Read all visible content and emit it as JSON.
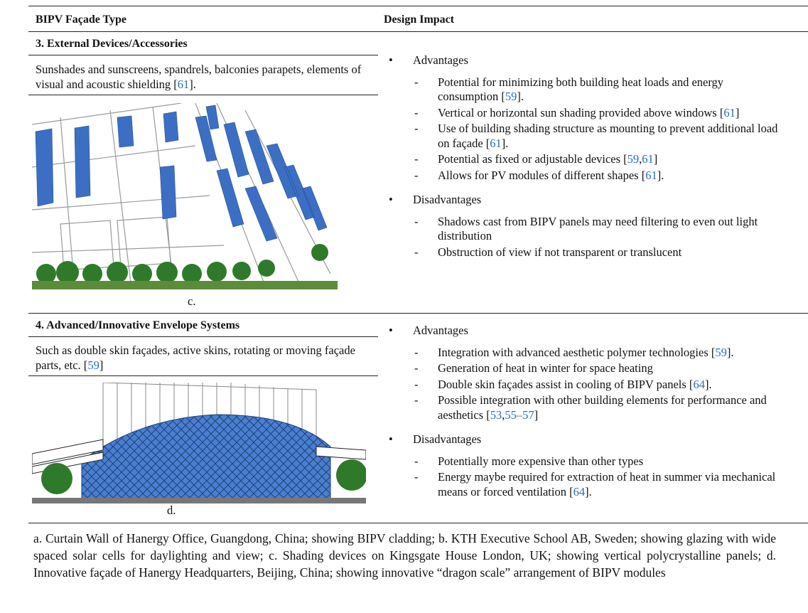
{
  "header": {
    "col1": "BIPV Façade Type",
    "col2": "Design Impact"
  },
  "sections": [
    {
      "title": "3. External Devices/Accessories",
      "description": [
        "Sunshades and sunscreens, spandrels, balconies parapets, elements of visual and acoustic shielding [",
        "61",
        "]."
      ],
      "figure_label": "c.",
      "impact": [
        {
          "heading": "Advantages",
          "items": [
            [
              "Potential for minimizing both building heat loads and energy consumption [",
              "59",
              "]."
            ],
            [
              "Vertical or horizontal sun shading provided above windows [",
              "61",
              "]"
            ],
            [
              "Use of building shading structure as mounting to prevent additional load on façade [",
              "61",
              "]."
            ],
            [
              "Potential as fixed or adjustable devices [",
              "59",
              ",",
              "61",
              "]"
            ],
            [
              "Allows for PV modules of different shapes [",
              "61",
              "]."
            ]
          ]
        },
        {
          "heading": "Disadvantages",
          "items": [
            [
              "Shadows cast from BIPV panels may need filtering to even out light distribution"
            ],
            [
              "Obstruction of view if not transparent or translucent"
            ]
          ]
        }
      ]
    },
    {
      "title": "4. Advanced/Innovative Envelope Systems",
      "description": [
        "Such as double skin façades, active skins, rotating or moving façade parts, etc. [",
        "59",
        "]"
      ],
      "figure_label": "d.",
      "impact": [
        {
          "heading": "Advantages",
          "items": [
            [
              "Integration with advanced aesthetic polymer technologies [",
              "59",
              "]."
            ],
            [
              "Generation of heat in winter for space heating"
            ],
            [
              "Double skin façades assist in cooling of BIPV panels [",
              "64",
              "]."
            ],
            [
              "Possible integration with other building elements for performance and aesthetics [",
              "53",
              ",",
              "55–57",
              "]"
            ]
          ]
        },
        {
          "heading": "Disadvantages",
          "items": [
            [
              "Potentially more expensive than other types"
            ],
            [
              "Energy maybe required for extraction of heat in summer via mechanical means or forced ventilation [",
              "64",
              "]."
            ]
          ]
        }
      ]
    }
  ],
  "caption": "a. Curtain Wall of Hanergy Office, Guangdong, China; showing BIPV cladding; b. KTH Executive School AB, Sweden; showing glazing with wide spaced solar cells for daylighting and view; c. Shading devices on Kingsgate House London, UK; showing vertical polycrystalline panels; d. Innovative façade of Hanergy Headquarters, Beijing, China; showing innovative “dragon scale” arrangement of BIPV modules"
}
